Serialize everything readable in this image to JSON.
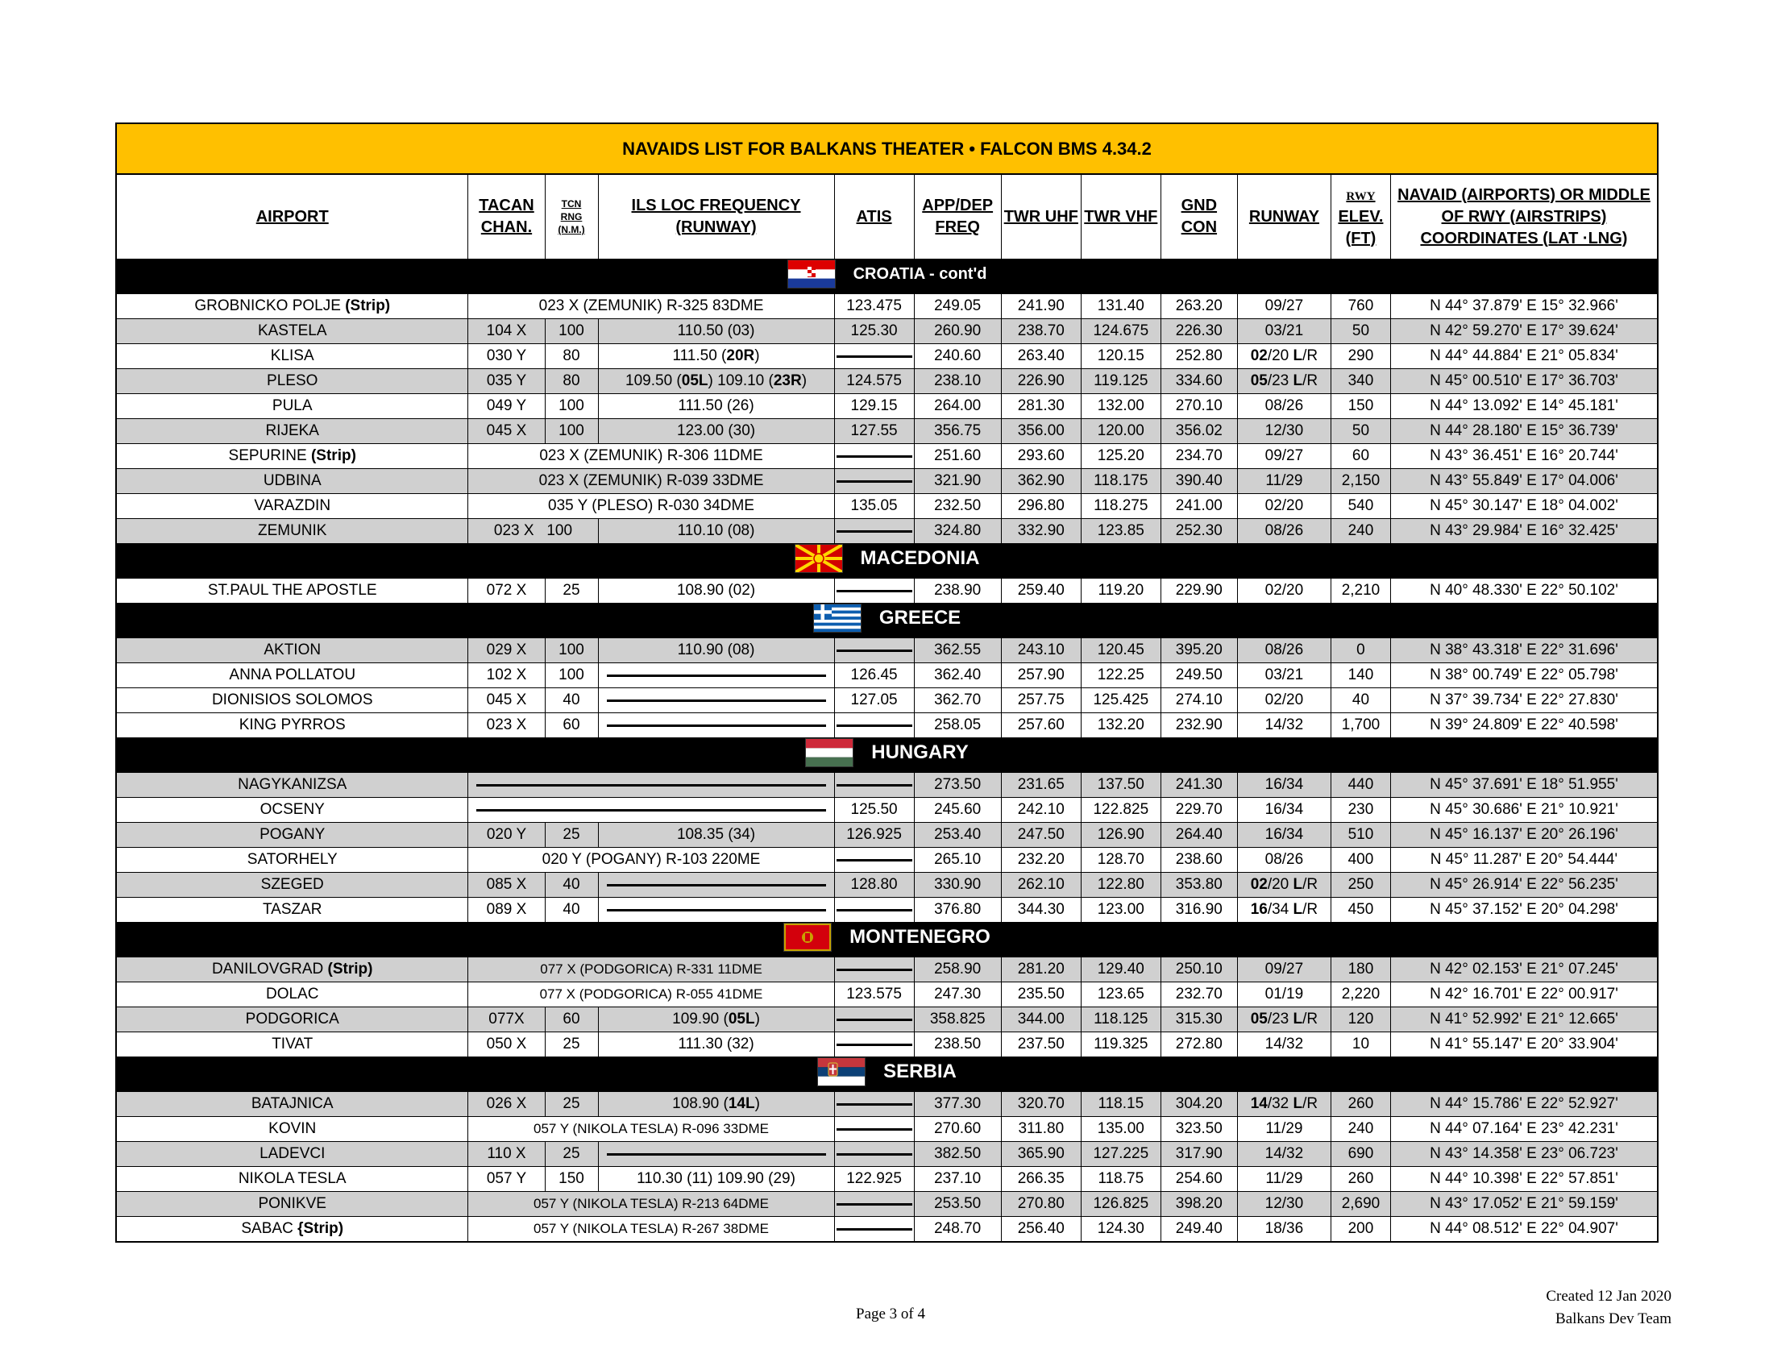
{
  "title": "NAVAIDS LIST FOR BALKANS THEATER  • FALCON BMS 4.34.2",
  "headers": {
    "airport": "AIRPORT",
    "tacan": [
      "TACAN",
      "CHAN."
    ],
    "tcn_rng": [
      "TCN",
      "RNG",
      "(N.M.)"
    ],
    "ils": [
      "ILS LOC FREQUENCY",
      "(RUNWAY)"
    ],
    "atis": "ATIS",
    "app": [
      "APP/DEP",
      "FREQ"
    ],
    "twr_uhf": "TWR UHF",
    "twr_vhf": "TWR VHF",
    "gnd": [
      "GND",
      "CON"
    ],
    "runway": "RUNWAY",
    "rwy_elev": [
      "RWY",
      "ELEV.",
      "(FT)"
    ],
    "navaid": [
      "NAVAID (AIRPORTS) OR MIDDLE",
      "OF RWY (AIRSTRIPS)",
      "COORDINATES (LAT ·LNG)"
    ]
  },
  "sections": [
    {
      "country": "CROATIA - cont'd",
      "flag": "croatia-flag",
      "rows": [
        {
          "airport": "GROBNICKO POLJE",
          "suffix": "(Strip)",
          "span": "023 X (ZEMUNIK) R-325 83DME",
          "atis": "123.475",
          "app": "249.05",
          "twr_uhf": "241.90",
          "twr_vhf": "131.40",
          "gnd": "263.20",
          "runway": "09/27",
          "elev": "760",
          "coord": "N 44° 37.879' E 15° 32.966'"
        },
        {
          "airport": "KASTELA",
          "tacan": "104 X",
          "rng": "100",
          "ils": "110.50 (03)",
          "atis": "125.30",
          "app": "260.90",
          "twr_uhf": "238.70",
          "twr_vhf": "124.675",
          "gnd": "226.30",
          "runway": "03/21",
          "elev": "50",
          "coord": "N 42° 59.270' E 17° 39.624'"
        },
        {
          "airport": "KLISA",
          "tacan": "030 Y",
          "rng": "80",
          "ils": "111.50 (20R)",
          "atis": "",
          "app": "240.60",
          "twr_uhf": "263.40",
          "twr_vhf": "120.15",
          "gnd": "252.80",
          "runway": "02/20 L/R",
          "elev": "290",
          "coord": "N 44° 44.884' E 21° 05.834'"
        },
        {
          "airport": "PLESO",
          "tacan": "035 Y",
          "rng": "80",
          "ils": "109.50 (05L) 109.10 (23R)",
          "atis": "124.575",
          "app": "238.10",
          "twr_uhf": "226.90",
          "twr_vhf": "119.125",
          "gnd": "334.60",
          "runway": "05/23 L/R",
          "elev": "340",
          "coord": "N 45° 00.510' E 17° 36.703'"
        },
        {
          "airport": "PULA",
          "tacan": "049 Y",
          "rng": "100",
          "ils": "111.50 (26)",
          "atis": "129.15",
          "app": "264.00",
          "twr_uhf": "281.30",
          "twr_vhf": "132.00",
          "gnd": "270.10",
          "runway": "08/26",
          "elev": "150",
          "coord": "N 44° 13.092' E 14° 45.181'"
        },
        {
          "airport": "RIJEKA",
          "tacan": "045 X",
          "rng": "100",
          "ils": "123.00 (30)",
          "atis": "127.55",
          "app": "356.75",
          "twr_uhf": "356.00",
          "twr_vhf": "120.00",
          "gnd": "356.02",
          "runway": "12/30",
          "elev": "50",
          "coord": "N 44° 28.180' E 15° 36.739'"
        },
        {
          "airport": "SEPURINE",
          "suffix": "(Strip)",
          "span": "023 X (ZEMUNIK) R-306 11DME",
          "atis": "",
          "app": "251.60",
          "twr_uhf": "293.60",
          "twr_vhf": "125.20",
          "gnd": "234.70",
          "runway": "09/27",
          "elev": "60",
          "coord": "N 43° 36.451' E 16° 20.744'"
        },
        {
          "airport": "UDBINA",
          "span": "023 X (ZEMUNIK) R-039 33DME",
          "atis": "",
          "app": "321.90",
          "twr_uhf": "362.90",
          "twr_vhf": "118.175",
          "gnd": "390.40",
          "runway": "11/29",
          "elev": "2,150",
          "coord": "N 43° 55.849' E 17° 04.006'"
        },
        {
          "airport": "VARAZDIN",
          "span": "035 Y (PLESO) R-030 34DME",
          "atis": "135.05",
          "app": "232.50",
          "twr_uhf": "296.80",
          "twr_vhf": "118.275",
          "gnd": "241.00",
          "runway": "02/20",
          "elev": "540",
          "coord": "N 45° 30.147' E 18° 04.002'"
        },
        {
          "airport": "ZEMUNIK",
          "tacan": "023 X   100",
          "ils": "110.10 (08)",
          "atis": "",
          "app": "324.80",
          "twr_uhf": "332.90",
          "twr_vhf": "123.85",
          "gnd": "252.30",
          "runway": "08/26",
          "elev": "240",
          "coord": "N 43° 29.984' E 16° 32.425'"
        }
      ]
    },
    {
      "country": "MACEDONIA",
      "flag": "macedonia-flag",
      "rows": [
        {
          "airport": "ST.PAUL THE APOSTLE",
          "tacan": "072 X",
          "rng": "25",
          "ils": "108.90 (02)",
          "atis": "",
          "app": "238.90",
          "twr_uhf": "259.40",
          "twr_vhf": "119.20",
          "gnd": "229.90",
          "runway": "02/20",
          "elev": "2,210",
          "coord": "N 40° 48.330' E 22° 50.102'"
        }
      ]
    },
    {
      "country": "GREECE",
      "flag": "greece-flag",
      "rows": [
        {
          "airport": "AKTION",
          "tacan": "029 X",
          "rng": "100",
          "ils": "110.90 (08)",
          "atis": "",
          "app": "362.55",
          "twr_uhf": "243.10",
          "twr_vhf": "120.45",
          "gnd": "395.20",
          "runway": "08/26",
          "elev": "0",
          "coord": "N 38° 43.318' E 22° 31.696'"
        },
        {
          "airport": "ANNA POLLATOU",
          "tacan": "102 X",
          "rng": "100",
          "ils": "",
          "atis": "126.45",
          "app": "362.40",
          "twr_uhf": "257.90",
          "twr_vhf": "122.25",
          "gnd": "249.50",
          "runway": "03/21",
          "elev": "140",
          "coord": "N 38° 00.749' E 22° 05.798'"
        },
        {
          "airport": "DIONISIOS SOLOMOS",
          "tacan": "045 X",
          "rng": "40",
          "ils": "",
          "atis": "127.05",
          "app": "362.70",
          "twr_uhf": "257.75",
          "twr_vhf": "125.425",
          "gnd": "274.10",
          "runway": "02/20",
          "elev": "40",
          "coord": "N 37° 39.734' E 22° 27.830'"
        },
        {
          "airport": "KING PYRROS",
          "tacan": "023 X",
          "rng": "60",
          "ils": "",
          "atis": "",
          "app": "258.05",
          "twr_uhf": "257.60",
          "twr_vhf": "132.20",
          "gnd": "232.90",
          "runway": "14/32",
          "elev": "1,700",
          "coord": "N 39° 24.809' E 22° 40.598'"
        }
      ]
    },
    {
      "country": "HUNGARY",
      "flag": "hungary-flag",
      "rows": [
        {
          "airport": "NAGYKANIZSA",
          "span": "",
          "atis": "",
          "app": "273.50",
          "twr_uhf": "231.65",
          "twr_vhf": "137.50",
          "gnd": "241.30",
          "runway": "16/34",
          "elev": "440",
          "coord": "N 45° 37.691' E 18° 51.955'"
        },
        {
          "airport": "OCSENY",
          "span": "",
          "atis": "125.50",
          "app": "245.60",
          "twr_uhf": "242.10",
          "twr_vhf": "122.825",
          "gnd": "229.70",
          "runway": "16/34",
          "elev": "230",
          "coord": "N 45° 30.686' E 21° 10.921'"
        },
        {
          "airport": "POGANY",
          "tacan": "020 Y",
          "rng": "25",
          "ils": "108.35 (34)",
          "atis": "126.925",
          "app": "253.40",
          "twr_uhf": "247.50",
          "twr_vhf": "126.90",
          "gnd": "264.40",
          "runway": "16/34",
          "elev": "510",
          "coord": "N 45° 16.137' E 20° 26.196'"
        },
        {
          "airport": "SATORHELY",
          "span": "020 Y (POGANY)  R-103  220ME",
          "atis": "",
          "app": "265.10",
          "twr_uhf": "232.20",
          "twr_vhf": "128.70",
          "gnd": "238.60",
          "runway": "08/26",
          "elev": "400",
          "coord": "N 45° 11.287' E 20° 54.444'"
        },
        {
          "airport": "SZEGED",
          "tacan": "085 X",
          "rng": "40",
          "ils": "",
          "atis": "128.80",
          "app": "330.90",
          "twr_uhf": "262.10",
          "twr_vhf": "122.80",
          "gnd": "353.80",
          "runway": "02/20 L/R",
          "elev": "250",
          "coord": "N 45° 26.914' E 22° 56.235'"
        },
        {
          "airport": "TASZAR",
          "tacan": "089 X",
          "rng": "40",
          "ils": "",
          "atis": "",
          "app": "376.80",
          "twr_uhf": "344.30",
          "twr_vhf": "123.00",
          "gnd": "316.90",
          "runway": "16/34 L/R",
          "elev": "450",
          "coord": "N 45° 37.152' E 20° 04.298'"
        }
      ]
    },
    {
      "country": "MONTENEGRO",
      "flag": "montenegro-flag",
      "rows": [
        {
          "airport": "DANILOVGRAD",
          "suffix": "(Strip)",
          "span": "077 X (PODGORICA)  R-331  11DME",
          "atis": "",
          "app": "258.90",
          "twr_uhf": "281.20",
          "twr_vhf": "129.40",
          "gnd": "250.10",
          "runway": "09/27",
          "elev": "180",
          "coord": "N 42° 02.153' E 21° 07.245'"
        },
        {
          "airport": "DOLAC",
          "span": "077 X (PODGORICA)  R-055  41DME",
          "atis": "123.575",
          "app": "247.30",
          "twr_uhf": "235.50",
          "twr_vhf": "123.65",
          "gnd": "232.70",
          "runway": "01/19",
          "elev": "2,220",
          "coord": "N 42° 16.701' E 22° 00.917'"
        },
        {
          "airport": "PODGORICA",
          "tacan": "077X",
          "rng": "60",
          "ils": "109.90 (05L)",
          "atis": "",
          "app": "358.825",
          "twr_uhf": "344.00",
          "twr_vhf": "118.125",
          "gnd": "315.30",
          "runway": "05/23 L/R",
          "elev": "120",
          "coord": "N 41° 52.992' E 21° 12.665'"
        },
        {
          "airport": "TIVAT",
          "tacan": "050 X",
          "rng": "25",
          "ils": "111.30 (32)",
          "atis": "",
          "app": "238.50",
          "twr_uhf": "237.50",
          "twr_vhf": "119.325",
          "gnd": "272.80",
          "runway": "14/32",
          "elev": "10",
          "coord": "N 41° 55.147' E 20° 33.904'"
        }
      ]
    },
    {
      "country": "SERBIA",
      "flag": "serbia-flag",
      "rows": [
        {
          "airport": "BATAJNICA",
          "tacan": "026 X",
          "rng": "25",
          "ils": "108.90 (14L)",
          "atis": "",
          "app": "377.30",
          "twr_uhf": "320.70",
          "twr_vhf": "118.15",
          "gnd": "304.20",
          "runway": "14/32 L/R",
          "elev": "260",
          "coord": "N 44° 15.786' E 22° 52.927'"
        },
        {
          "airport": "KOVIN",
          "span": "057 Y (NIKOLA TESLA)  R-096  33DME",
          "atis": "",
          "app": "270.60",
          "twr_uhf": "311.80",
          "twr_vhf": "135.00",
          "gnd": "323.50",
          "runway": "11/29",
          "elev": "240",
          "coord": "N 44° 07.164' E 23° 42.231'"
        },
        {
          "airport": "LADEVCI",
          "tacan": "110 X",
          "rng": "25",
          "ils": "",
          "atis": "",
          "app": "382.50",
          "twr_uhf": "365.90",
          "twr_vhf": "127.225",
          "gnd": "317.90",
          "runway": "14/32",
          "elev": "690",
          "coord": "N 43° 14.358' E 23° 06.723'"
        },
        {
          "airport": "NIKOLA TESLA",
          "tacan": "057 Y",
          "rng": "150",
          "ils": "110.30 (11) 109.90 (29)",
          "atis": "122.925",
          "app": "237.10",
          "twr_uhf": "266.35",
          "twr_vhf": "118.75",
          "gnd": "254.60",
          "runway": "11/29",
          "elev": "260",
          "coord": "N 44° 10.398' E 22° 57.851'"
        },
        {
          "airport": "PONIKVE",
          "span": "057 Y (NIKOLA TESLA)  R-213  64DME",
          "atis": "",
          "app": "253.50",
          "twr_uhf": "270.80",
          "twr_vhf": "126.825",
          "gnd": "398.20",
          "runway": "12/30",
          "elev": "2,690",
          "coord": "N 43° 17.052' E 21° 59.159'"
        },
        {
          "airport": "SABAC",
          "suffix": "{Strip)",
          "span": "057 Y (NIKOLA TESLA)  R-267  38DME",
          "atis": "",
          "app": "248.70",
          "twr_uhf": "256.40",
          "twr_vhf": "124.30",
          "gnd": "249.40",
          "runway": "18/36",
          "elev": "200",
          "coord": "N 44° 08.512' E 22° 04.907'"
        }
      ]
    }
  ],
  "footer": {
    "page": "Page 3 of 4",
    "created": "Created 12 Jan 2020",
    "team": "Balkans Dev Team"
  },
  "colors": {
    "title_bg": "#FFC000",
    "gray_row": "#D0D0D0",
    "country_bar": "#000000"
  }
}
